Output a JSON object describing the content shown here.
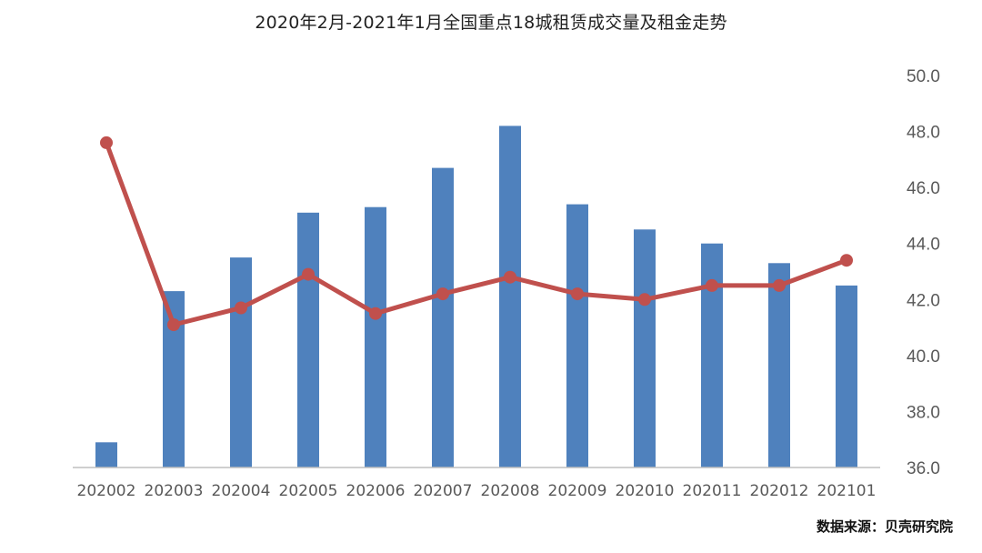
{
  "chart_data": {
    "type": "bar",
    "title": "2020年2月-2021年1月全国重点18城租赁成交量及租金走势",
    "categories": [
      "202002",
      "202003",
      "202004",
      "202005",
      "202006",
      "202007",
      "202008",
      "202009",
      "202010",
      "202011",
      "202012",
      "202101"
    ],
    "series": [
      {
        "kind": "bar",
        "values": [
          36.9,
          42.3,
          43.5,
          45.1,
          45.3,
          46.7,
          48.2,
          45.4,
          44.5,
          44.0,
          43.3,
          42.5
        ],
        "color": "#4F81BD"
      },
      {
        "kind": "line",
        "values": [
          47.6,
          41.1,
          41.7,
          42.9,
          41.5,
          42.2,
          42.8,
          42.2,
          42.0,
          42.5,
          42.5,
          43.4
        ],
        "color": "#C0504D"
      }
    ],
    "y_axis": {
      "position": "right",
      "ylim": [
        36.0,
        50.0
      ],
      "ticks": [
        "36.0",
        "38.0",
        "40.0",
        "42.0",
        "44.0",
        "46.0",
        "48.0",
        "50.0"
      ]
    },
    "grid": false,
    "legend": "none"
  },
  "source": "数据来源：贝壳研究院"
}
